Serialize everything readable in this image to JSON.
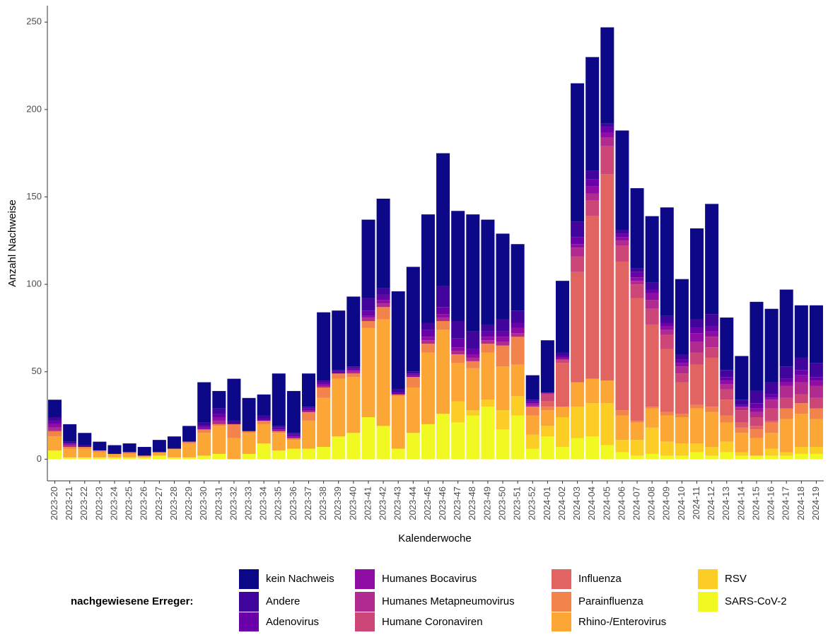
{
  "chart_data": {
    "type": "stacked_bar",
    "x_label": "Kalenderwoche",
    "y_label": "Anzahl Nachweise",
    "legend_title": "nachgewiesene Erreger:",
    "categories": [
      "2023-20",
      "2023-21",
      "2023-22",
      "2023-23",
      "2023-24",
      "2023-25",
      "2023-26",
      "2023-27",
      "2023-28",
      "2023-29",
      "2023-30",
      "2023-31",
      "2023-32",
      "2023-33",
      "2023-34",
      "2023-35",
      "2023-36",
      "2023-37",
      "2023-38",
      "2023-39",
      "2023-40",
      "2023-41",
      "2023-42",
      "2023-43",
      "2023-44",
      "2023-45",
      "2023-46",
      "2023-47",
      "2023-48",
      "2023-49",
      "2023-50",
      "2023-51",
      "2023-52",
      "2024-01",
      "2024-02",
      "2024-03",
      "2024-04",
      "2024-05",
      "2024-06",
      "2024-07",
      "2024-08",
      "2024-09",
      "2024-10",
      "2024-11",
      "2024-12",
      "2024-13",
      "2024-14",
      "2024-15",
      "2024-16",
      "2024-17",
      "2024-18",
      "2024-19"
    ],
    "ylim": [
      -12.4,
      259.4
    ],
    "yticks": [
      0,
      50,
      100,
      150,
      200,
      250
    ],
    "grid": false,
    "series": [
      {
        "name": "kein Nachweis",
        "color": "#0d0887",
        "values": [
          10,
          10,
          7,
          5,
          5,
          5,
          5,
          7,
          7,
          9,
          23,
          10,
          24,
          19,
          12,
          30,
          24,
          19,
          39,
          34,
          40,
          45,
          51,
          56,
          60,
          62,
          76,
          63,
          67,
          60,
          49,
          38,
          14,
          30,
          41,
          79,
          65,
          55,
          57,
          46,
          38,
          62,
          43,
          52,
          63,
          30,
          25,
          51,
          42,
          44,
          30,
          33
        ]
      },
      {
        "name": "Andere",
        "color": "#41049d",
        "values": [
          2,
          1,
          1,
          0,
          0,
          0,
          0,
          0,
          0,
          0,
          2,
          3,
          2,
          0,
          2,
          1,
          1,
          1,
          1,
          1,
          1,
          7,
          4,
          2,
          1,
          4,
          12,
          10,
          10,
          4,
          7,
          7,
          1,
          0,
          2,
          9,
          5,
          2,
          2,
          2,
          4,
          4,
          3,
          5,
          7,
          4,
          3,
          7,
          7,
          7,
          7,
          8
        ]
      },
      {
        "name": "Adenovirus",
        "color": "#6a00a8",
        "values": [
          2,
          0,
          0,
          0,
          0,
          0,
          0,
          0,
          0,
          0,
          1,
          2,
          0,
          0,
          1,
          1,
          1,
          1,
          1,
          1,
          1,
          3,
          3,
          1,
          1,
          4,
          4,
          5,
          3,
          3,
          3,
          3,
          1,
          0,
          1,
          4,
          4,
          3,
          2,
          3,
          2,
          2,
          2,
          3,
          3,
          2,
          1,
          3,
          2,
          2,
          3,
          2
        ]
      },
      {
        "name": "Humanes Bocavirus",
        "color": "#8f0da4",
        "values": [
          2,
          1,
          0,
          0,
          0,
          0,
          0,
          0,
          0,
          0,
          1,
          2,
          0,
          0,
          0,
          1,
          1,
          1,
          1,
          0,
          1,
          1,
          2,
          0,
          1,
          2,
          2,
          2,
          2,
          2,
          3,
          3,
          1,
          0,
          1,
          2,
          4,
          3,
          2,
          2,
          4,
          2,
          2,
          5,
          3,
          2,
          0,
          2,
          1,
          2,
          4,
          3
        ]
      },
      {
        "name": "Humanes Metapneumovirus",
        "color": "#b12a90",
        "values": [
          2,
          1,
          0,
          0,
          0,
          0,
          0,
          0,
          0,
          0,
          0,
          2,
          0,
          0,
          0,
          0,
          0,
          0,
          1,
          0,
          1,
          2,
          2,
          0,
          0,
          2,
          2,
          2,
          2,
          2,
          2,
          2,
          1,
          1,
          0,
          5,
          4,
          5,
          3,
          2,
          5,
          3,
          4,
          6,
          6,
          3,
          2,
          3,
          5,
          7,
          7,
          7
        ]
      },
      {
        "name": "Humane Coronaviren",
        "color": "#cc4778",
        "values": [
          0,
          0,
          0,
          0,
          0,
          0,
          0,
          0,
          0,
          0,
          0,
          0,
          0,
          0,
          0,
          0,
          0,
          0,
          0,
          0,
          0,
          0,
          0,
          0,
          0,
          0,
          0,
          0,
          0,
          0,
          0,
          0,
          0,
          4,
          2,
          9,
          9,
          16,
          9,
          8,
          9,
          8,
          5,
          7,
          6,
          6,
          7,
          5,
          7,
          6,
          5,
          6
        ]
      },
      {
        "name": "Influenza",
        "color": "#e16462",
        "values": [
          0,
          0,
          0,
          0,
          0,
          0,
          0,
          0,
          0,
          0,
          0,
          0,
          0,
          0,
          0,
          0,
          0,
          0,
          0,
          0,
          0,
          0,
          0,
          0,
          0,
          0,
          0,
          0,
          0,
          0,
          0,
          0,
          0,
          3,
          25,
          63,
          93,
          118,
          85,
          70,
          47,
          36,
          18,
          23,
          28,
          9,
          3,
          2,
          1,
          0,
          0,
          0
        ]
      },
      {
        "name": "Parainfluenza",
        "color": "#f2844b",
        "values": [
          3,
          1,
          1,
          1,
          0,
          1,
          0,
          0,
          0,
          1,
          2,
          1,
          8,
          1,
          2,
          1,
          1,
          5,
          6,
          3,
          2,
          4,
          7,
          1,
          6,
          5,
          5,
          5,
          4,
          5,
          12,
          16,
          5,
          2,
          0,
          0,
          0,
          0,
          3,
          1,
          1,
          2,
          2,
          2,
          3,
          4,
          3,
          5,
          6,
          6,
          6,
          6
        ]
      },
      {
        "name": "Rhino-/Enterovirus",
        "color": "#fca636",
        "values": [
          8,
          5,
          5,
          3,
          2,
          2,
          1,
          2,
          5,
          8,
          13,
          16,
          12,
          12,
          11,
          10,
          5,
          16,
          28,
          33,
          32,
          51,
          61,
          30,
          26,
          41,
          48,
          22,
          24,
          27,
          25,
          18,
          11,
          9,
          6,
          14,
          14,
          13,
          14,
          10,
          11,
          15,
          15,
          20,
          20,
          11,
          11,
          10,
          9,
          19,
          19,
          16
        ]
      },
      {
        "name": "RSV",
        "color": "#fcce25",
        "values": [
          0,
          0,
          0,
          0,
          0,
          0,
          0,
          0,
          0,
          0,
          0,
          0,
          0,
          0,
          0,
          0,
          0,
          0,
          0,
          0,
          0,
          0,
          0,
          0,
          0,
          0,
          0,
          12,
          3,
          4,
          11,
          11,
          8,
          6,
          17,
          18,
          19,
          24,
          7,
          9,
          15,
          8,
          7,
          5,
          5,
          6,
          2,
          0,
          4,
          2,
          4,
          4
        ]
      },
      {
        "name": "SARS-CoV-2",
        "color": "#f0f921",
        "values": [
          5,
          1,
          1,
          1,
          1,
          1,
          1,
          2,
          1,
          1,
          2,
          3,
          0,
          3,
          9,
          5,
          6,
          6,
          7,
          13,
          15,
          24,
          19,
          6,
          15,
          20,
          26,
          21,
          25,
          30,
          17,
          25,
          6,
          13,
          7,
          12,
          13,
          8,
          4,
          2,
          3,
          2,
          2,
          4,
          2,
          4,
          2,
          2,
          2,
          2,
          3,
          3
        ]
      }
    ]
  }
}
